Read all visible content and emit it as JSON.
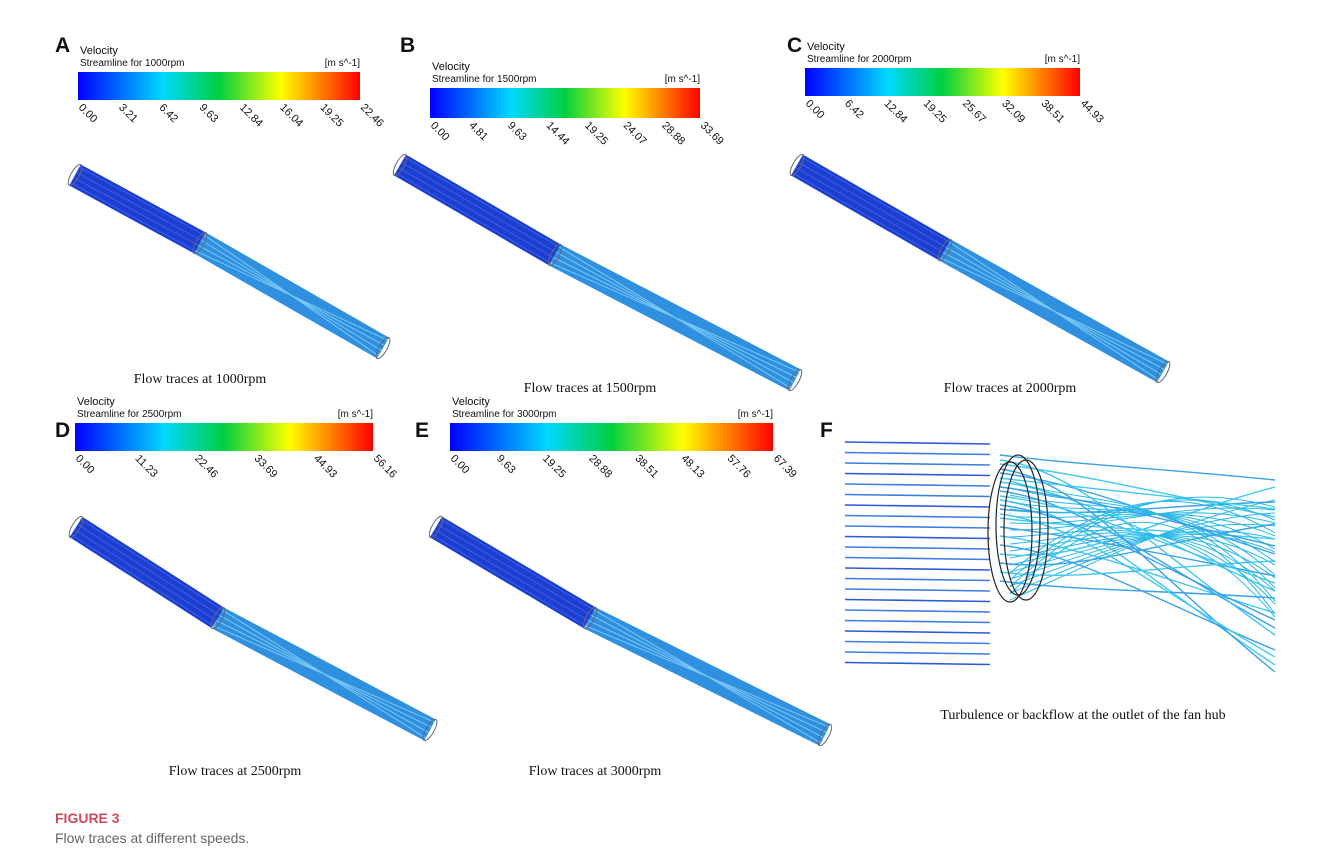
{
  "figure": {
    "label": "FIGURE 3",
    "caption": "Flow traces at different speeds.",
    "panels": [
      {
        "letter": "A",
        "quantity": "Velocity",
        "legend_title": "Streamline for 1000rpm",
        "unit": "[m s^-1]",
        "ticks": [
          "0.00",
          "3.21",
          "6.42",
          "9.63",
          "12.84",
          "16.04",
          "19.25",
          "22.46"
        ],
        "caption": "Flow traces at 1000rpm"
      },
      {
        "letter": "B",
        "quantity": "Velocity",
        "legend_title": "Streamline for 1500rpm",
        "unit": "[m s^-1]",
        "ticks": [
          "0.00",
          "4.81",
          "9.63",
          "14.44",
          "19.25",
          "24.07",
          "28.88",
          "33.69"
        ],
        "caption": "Flow traces at 1500rpm"
      },
      {
        "letter": "C",
        "quantity": "Velocity",
        "legend_title": "Streamline for 2000rpm",
        "unit": "[m s^-1]",
        "ticks": [
          "0.00",
          "6.42",
          "12.84",
          "19.25",
          "25.67",
          "32.09",
          "38.51",
          "44.93"
        ],
        "caption": "Flow traces at 2000rpm"
      },
      {
        "letter": "D",
        "quantity": "Velocity",
        "legend_title": "Streamline for 2500rpm",
        "unit": "[m s^-1]",
        "ticks": [
          "0.00",
          "11.23",
          "22.46",
          "33.69",
          "44.93",
          "56.16"
        ],
        "caption": "Flow traces at 2500rpm"
      },
      {
        "letter": "E",
        "quantity": "Velocity",
        "legend_title": "Streamline for 3000rpm",
        "unit": "[m s^-1]",
        "ticks": [
          "0.00",
          "9.63",
          "19.25",
          "28.88",
          "38.51",
          "48.13",
          "57.76",
          "67.39"
        ],
        "caption": "Flow traces at 3000rpm"
      },
      {
        "letter": "F",
        "caption": "Turbulence or backflow at the outlet of the fan hub"
      }
    ]
  }
}
